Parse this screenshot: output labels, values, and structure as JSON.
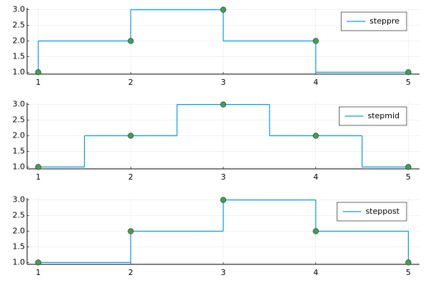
{
  "chart_data": [
    {
      "type": "line",
      "step": "pre",
      "x": [
        1,
        2,
        3,
        4,
        5
      ],
      "series": [
        {
          "name": "steppre",
          "color": "#009af9",
          "values": [
            1,
            2,
            3,
            2,
            1
          ]
        }
      ],
      "marker_color": "#3da44d",
      "xlim": [
        0.88,
        5.12
      ],
      "xticks": [
        1,
        2,
        3,
        4,
        5
      ],
      "ylim": [
        0.94,
        3.06
      ],
      "yticks": [
        {
          "value": 1,
          "label": "1.0"
        },
        1.5,
        {
          "value": 2,
          "label": "2.0"
        },
        2.5,
        {
          "value": 3,
          "label": "3.0"
        }
      ],
      "grid": true,
      "legend": "top-right"
    },
    {
      "type": "line",
      "step": "mid",
      "x": [
        1,
        2,
        3,
        4,
        5
      ],
      "series": [
        {
          "name": "stepmid",
          "color": "#009af9",
          "values": [
            1,
            2,
            3,
            2,
            1
          ]
        }
      ],
      "marker_color": "#3da44d",
      "xlim": [
        0.88,
        5.12
      ],
      "xticks": [
        1,
        2,
        3,
        4,
        5
      ],
      "ylim": [
        0.94,
        3.06
      ],
      "yticks": [
        {
          "value": 1,
          "label": "1.0"
        },
        1.5,
        {
          "value": 2,
          "label": "2.0"
        },
        2.5,
        {
          "value": 3,
          "label": "3.0"
        }
      ],
      "grid": true,
      "legend": "top-right"
    },
    {
      "type": "line",
      "step": "post",
      "x": [
        1,
        2,
        3,
        4,
        5
      ],
      "series": [
        {
          "name": "steppost",
          "color": "#009af9",
          "values": [
            1,
            2,
            3,
            2,
            1
          ]
        }
      ],
      "marker_color": "#3da44d",
      "xlim": [
        0.88,
        5.12
      ],
      "xticks": [
        1,
        2,
        3,
        4,
        5
      ],
      "ylim": [
        0.94,
        3.06
      ],
      "yticks": [
        {
          "value": 1,
          "label": "1.0"
        },
        1.5,
        {
          "value": 2,
          "label": "2.0"
        },
        2.5,
        {
          "value": 3,
          "label": "3.0"
        }
      ],
      "grid": true,
      "legend": "top-right"
    }
  ]
}
